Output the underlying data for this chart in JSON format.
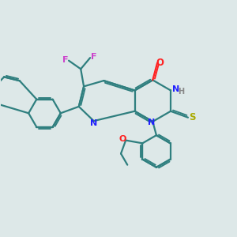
{
  "background_color": "#dde8e8",
  "bond_color": "#2f7f7f",
  "N_color": "#2020ff",
  "O_color": "#ff2020",
  "F_color": "#cc44cc",
  "S_color": "#aaaa00",
  "H_color": "#888888",
  "line_width": 1.6,
  "figsize": [
    3.0,
    3.0
  ],
  "dpi": 100,
  "xlim": [
    0,
    10
  ],
  "ylim": [
    0,
    10
  ]
}
